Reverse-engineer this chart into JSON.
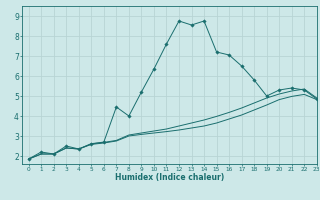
{
  "title": "",
  "xlabel": "Humidex (Indice chaleur)",
  "bg_color": "#cde8e8",
  "grid_color": "#b8d4d4",
  "line_color": "#1a6e6e",
  "xlim": [
    -0.5,
    23
  ],
  "ylim": [
    1.6,
    9.5
  ],
  "xticks": [
    0,
    1,
    2,
    3,
    4,
    5,
    6,
    7,
    8,
    9,
    10,
    11,
    12,
    13,
    14,
    15,
    16,
    17,
    18,
    19,
    20,
    21,
    22,
    23
  ],
  "yticks": [
    2,
    3,
    4,
    5,
    6,
    7,
    8,
    9
  ],
  "line1_x": [
    0,
    1,
    2,
    3,
    4,
    5,
    6,
    7,
    8,
    9,
    10,
    11,
    12,
    13,
    14,
    15,
    16,
    17,
    18,
    19,
    20,
    21,
    22,
    23
  ],
  "line1_y": [
    1.85,
    2.2,
    2.1,
    2.5,
    2.35,
    2.6,
    2.7,
    4.45,
    4.0,
    5.2,
    6.35,
    7.6,
    8.75,
    8.55,
    8.75,
    7.2,
    7.05,
    6.5,
    5.8,
    5.0,
    5.3,
    5.4,
    5.3,
    4.85
  ],
  "line2_x": [
    0,
    1,
    2,
    3,
    4,
    5,
    6,
    7,
    8,
    9,
    10,
    11,
    12,
    13,
    14,
    15,
    16,
    17,
    18,
    19,
    20,
    21,
    22,
    23
  ],
  "line2_y": [
    1.85,
    2.1,
    2.1,
    2.4,
    2.35,
    2.58,
    2.65,
    2.75,
    3.0,
    3.08,
    3.15,
    3.22,
    3.3,
    3.4,
    3.5,
    3.65,
    3.85,
    4.05,
    4.3,
    4.55,
    4.82,
    4.98,
    5.08,
    4.82
  ],
  "line3_x": [
    0,
    1,
    2,
    3,
    4,
    5,
    6,
    7,
    8,
    9,
    10,
    11,
    12,
    13,
    14,
    15,
    16,
    17,
    18,
    19,
    20,
    21,
    22,
    23
  ],
  "line3_y": [
    1.85,
    2.1,
    2.1,
    2.4,
    2.35,
    2.62,
    2.68,
    2.78,
    3.05,
    3.15,
    3.25,
    3.35,
    3.5,
    3.65,
    3.8,
    3.98,
    4.18,
    4.4,
    4.65,
    4.9,
    5.1,
    5.25,
    5.35,
    4.9
  ]
}
